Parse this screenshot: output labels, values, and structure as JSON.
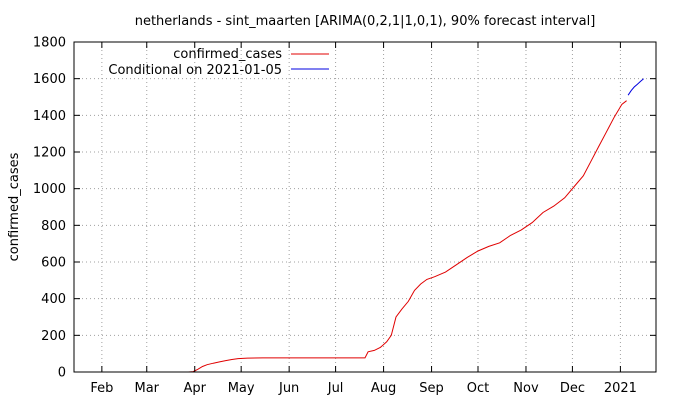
{
  "chart_data": {
    "type": "line",
    "title": "netherlands - sint_maarten [ARIMA(0,2,1|1,0,1), 90% forecast interval]",
    "xlabel": "",
    "ylabel": "confirmed_cases",
    "ylim": [
      0,
      1800
    ],
    "xlim": [
      "2020-01-14",
      "2021-01-24"
    ],
    "grid": true,
    "legend_position": "top-left",
    "y_ticks": [
      0,
      200,
      400,
      600,
      800,
      1000,
      1200,
      1400,
      1600,
      1800
    ],
    "x_ticks": [
      {
        "date": "2020-02-01",
        "label": "Feb"
      },
      {
        "date": "2020-03-01",
        "label": "Mar"
      },
      {
        "date": "2020-04-01",
        "label": "Apr"
      },
      {
        "date": "2020-05-01",
        "label": "May"
      },
      {
        "date": "2020-06-01",
        "label": "Jun"
      },
      {
        "date": "2020-07-01",
        "label": "Jul"
      },
      {
        "date": "2020-08-01",
        "label": "Aug"
      },
      {
        "date": "2020-09-01",
        "label": "Sep"
      },
      {
        "date": "2020-10-01",
        "label": "Oct"
      },
      {
        "date": "2020-11-01",
        "label": "Nov"
      },
      {
        "date": "2020-12-01",
        "label": "Dec"
      },
      {
        "date": "2021-01-01",
        "label": "2021"
      }
    ],
    "series": [
      {
        "name": "confirmed_cases",
        "color": "#e00000",
        "points": [
          [
            "2020-03-28",
            0
          ],
          [
            "2020-03-31",
            2
          ],
          [
            "2020-04-03",
            15
          ],
          [
            "2020-04-06",
            30
          ],
          [
            "2020-04-09",
            40
          ],
          [
            "2020-04-13",
            48
          ],
          [
            "2020-04-17",
            55
          ],
          [
            "2020-04-21",
            62
          ],
          [
            "2020-04-25",
            68
          ],
          [
            "2020-04-29",
            73
          ],
          [
            "2020-05-05",
            76
          ],
          [
            "2020-05-15",
            77
          ],
          [
            "2020-06-01",
            77
          ],
          [
            "2020-06-20",
            77
          ],
          [
            "2020-07-10",
            77
          ],
          [
            "2020-07-20",
            77
          ],
          [
            "2020-07-22",
            110
          ],
          [
            "2020-07-26",
            118
          ],
          [
            "2020-07-30",
            135
          ],
          [
            "2020-08-03",
            165
          ],
          [
            "2020-08-06",
            200
          ],
          [
            "2020-08-09",
            300
          ],
          [
            "2020-08-13",
            345
          ],
          [
            "2020-08-17",
            385
          ],
          [
            "2020-08-21",
            445
          ],
          [
            "2020-08-25",
            480
          ],
          [
            "2020-08-29",
            505
          ],
          [
            "2020-09-03",
            520
          ],
          [
            "2020-09-10",
            545
          ],
          [
            "2020-09-17",
            585
          ],
          [
            "2020-09-24",
            625
          ],
          [
            "2020-10-01",
            660
          ],
          [
            "2020-10-08",
            685
          ],
          [
            "2020-10-15",
            705
          ],
          [
            "2020-10-22",
            745
          ],
          [
            "2020-10-29",
            775
          ],
          [
            "2020-11-05",
            815
          ],
          [
            "2020-11-12",
            870
          ],
          [
            "2020-11-19",
            905
          ],
          [
            "2020-11-26",
            950
          ],
          [
            "2020-12-03",
            1020
          ],
          [
            "2020-12-08",
            1070
          ],
          [
            "2020-12-13",
            1150
          ],
          [
            "2020-12-18",
            1230
          ],
          [
            "2020-12-23",
            1310
          ],
          [
            "2020-12-28",
            1390
          ],
          [
            "2021-01-02",
            1460
          ],
          [
            "2021-01-05",
            1480
          ]
        ]
      },
      {
        "name": "Conditional on 2021-01-05",
        "color": "#0000e0",
        "points": [
          [
            "2021-01-06",
            1510
          ],
          [
            "2021-01-08",
            1535
          ],
          [
            "2021-01-10",
            1555
          ],
          [
            "2021-01-12",
            1570
          ],
          [
            "2021-01-14",
            1585
          ],
          [
            "2021-01-16",
            1600
          ]
        ]
      }
    ]
  }
}
